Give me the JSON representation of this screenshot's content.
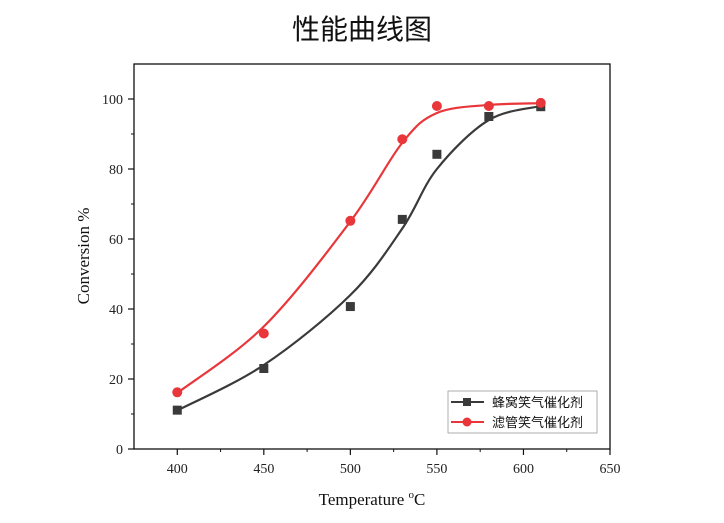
{
  "chart_data": {
    "type": "line",
    "title": "性能曲线图",
    "xlabel": "Temperature",
    "xlabel_unit_sup": "o",
    "xlabel_unit": "C",
    "ylabel": "Conversion %",
    "xlim": [
      375,
      650
    ],
    "ylim": [
      0,
      110
    ],
    "xticks": [
      400,
      450,
      500,
      550,
      600,
      650
    ],
    "yticks": [
      0,
      20,
      40,
      60,
      80,
      100
    ],
    "grid": false,
    "legend_position": "bottom-right",
    "series": [
      {
        "name": "蜂窝笑气催化剂",
        "color": "#3a3a3a",
        "marker": "square",
        "x": [
          400,
          450,
          500,
          530,
          550,
          580,
          610
        ],
        "y": [
          11.1,
          23.0,
          40.7,
          65.6,
          84.2,
          95.0,
          97.8
        ],
        "fit_x": [
          400,
          450,
          500,
          530,
          550,
          580,
          610
        ],
        "fit_y": [
          11,
          24,
          44,
          63,
          80,
          94,
          98
        ]
      },
      {
        "name": "滤管笑气催化剂",
        "color": "#e8363a",
        "marker": "circle",
        "x": [
          400,
          450,
          500,
          530,
          550,
          580,
          610
        ],
        "y": [
          16.2,
          33.0,
          65.2,
          88.5,
          98.0,
          98.0,
          98.9
        ],
        "fit_x": [
          400,
          450,
          500,
          530,
          550,
          580,
          610
        ],
        "fit_y": [
          16,
          35,
          65,
          87.5,
          96,
          98.3,
          98.8
        ]
      }
    ]
  }
}
